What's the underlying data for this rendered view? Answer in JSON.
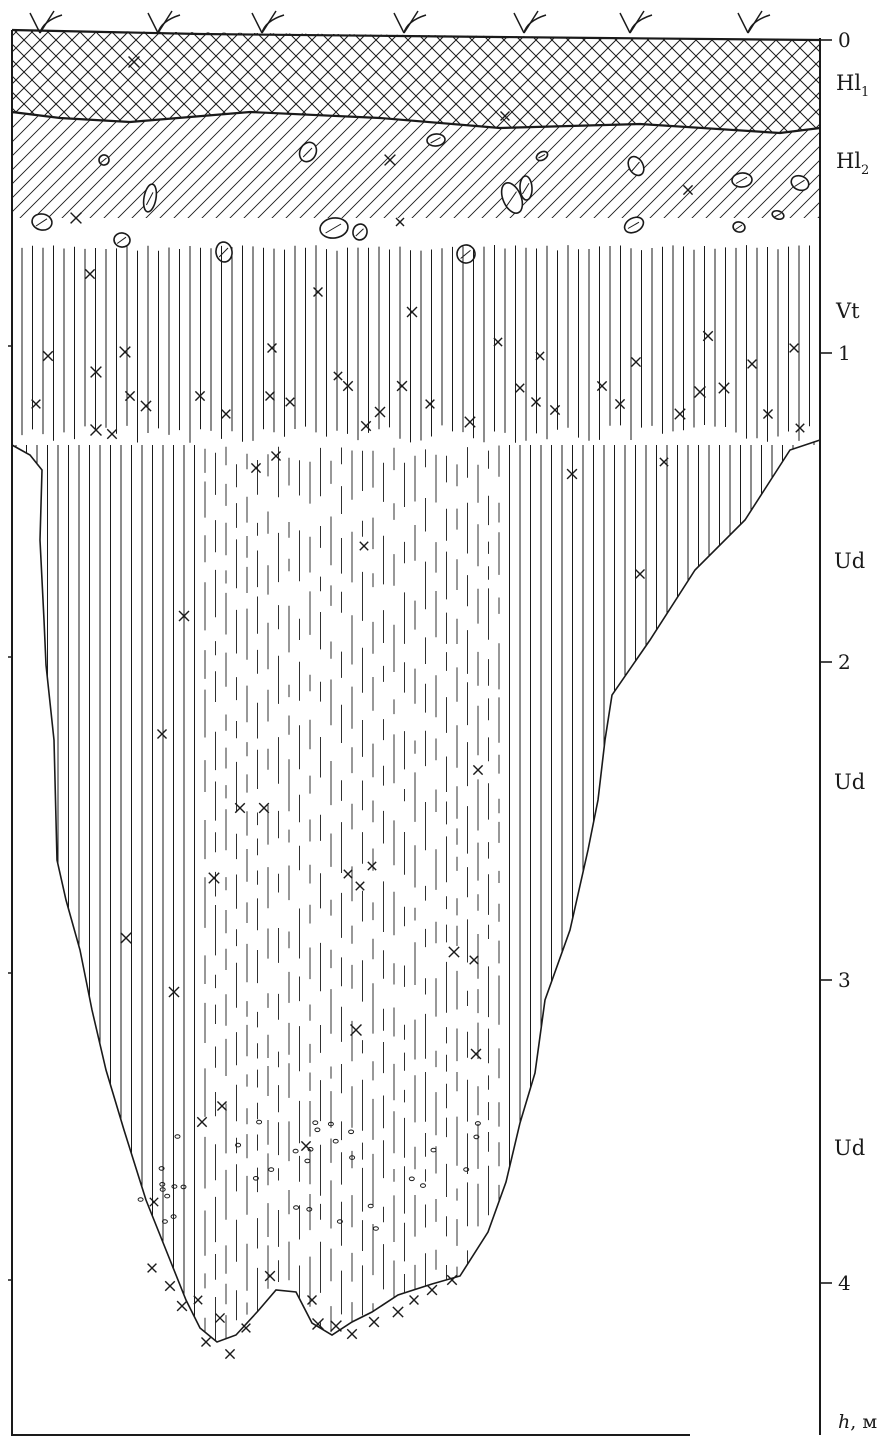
{
  "depth_scale": {
    "unit_label_var": "h",
    "unit_label_unit": ", м",
    "ticks": [
      "0",
      "1",
      "2",
      "3",
      "4"
    ]
  },
  "horizons": [
    {
      "code": "Hl",
      "sub": "1"
    },
    {
      "code": "Hl",
      "sub": "2"
    },
    {
      "code": "Vt",
      "sub": ""
    },
    {
      "code": "Ud",
      "sub": ""
    },
    {
      "code": "Ud",
      "sub": ""
    },
    {
      "code": "Ud",
      "sub": ""
    }
  ],
  "colors": {
    "ink": "#1a1a1a",
    "background": "#ffffff"
  }
}
